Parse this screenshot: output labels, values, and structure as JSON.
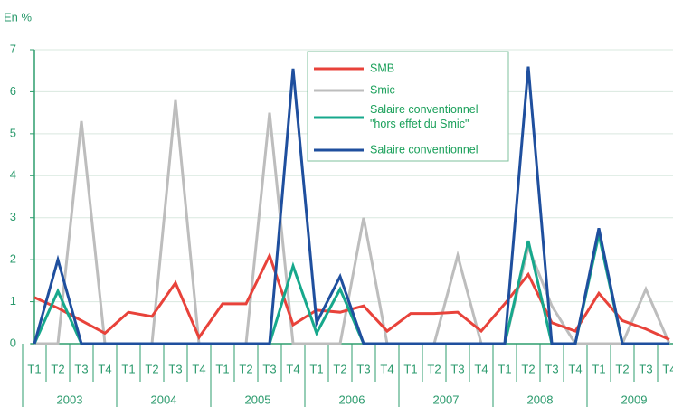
{
  "chart_data": {
    "type": "line",
    "y_label": "En %",
    "categories": [
      "T1",
      "T2",
      "T3",
      "T4",
      "T1",
      "T2",
      "T3",
      "T4",
      "T1",
      "T2",
      "T3",
      "T4",
      "T1",
      "T2",
      "T3",
      "T4",
      "T1",
      "T2",
      "T3",
      "T4",
      "T1",
      "T2",
      "T3",
      "T4",
      "T1",
      "T2",
      "T3",
      "T4"
    ],
    "years": [
      "2003",
      "2004",
      "2005",
      "2006",
      "2007",
      "2008",
      "2009"
    ],
    "ylim": [
      0,
      7
    ],
    "yticks": [
      0,
      1,
      2,
      3,
      4,
      5,
      6,
      7
    ],
    "grid": true,
    "legend": "top-center",
    "series": [
      {
        "name": "SMB",
        "color": "#e8423a",
        "values": [
          1.1,
          0.85,
          0.55,
          0.25,
          0.75,
          0.65,
          1.45,
          0.15,
          0.95,
          0.95,
          2.1,
          0.45,
          0.8,
          0.75,
          0.9,
          0.3,
          0.72,
          0.72,
          0.75,
          0.3,
          0.95,
          1.65,
          0.5,
          0.3,
          1.2,
          0.55,
          0.35,
          0.1
        ]
      },
      {
        "name": "Smic",
        "color": "#bdbdbd",
        "values": [
          0,
          0,
          5.3,
          0,
          0,
          0,
          5.8,
          0,
          0,
          0,
          5.5,
          0,
          0,
          0,
          3.0,
          0,
          0,
          0,
          2.1,
          0,
          0,
          2.3,
          0.9,
          0,
          0,
          0,
          1.3,
          0
        ]
      },
      {
        "name": "Salaire conventionnel \"hors effet du Smic\"",
        "color": "#17a88c",
        "values": [
          0,
          1.25,
          0,
          0,
          0,
          0,
          0,
          0,
          0,
          0,
          0,
          1.85,
          0.25,
          1.3,
          0,
          0,
          0,
          0,
          0,
          0,
          0,
          2.45,
          0,
          0,
          2.6,
          0,
          0,
          0
        ]
      },
      {
        "name": "Salaire conventionnel",
        "color": "#1f4f9e",
        "values": [
          0,
          2.0,
          0,
          0,
          0,
          0,
          0,
          0,
          0,
          0,
          0,
          6.55,
          0.5,
          1.6,
          0,
          0,
          0,
          0,
          0,
          0,
          0,
          6.6,
          0,
          0,
          2.75,
          0,
          0,
          0
        ]
      }
    ]
  }
}
